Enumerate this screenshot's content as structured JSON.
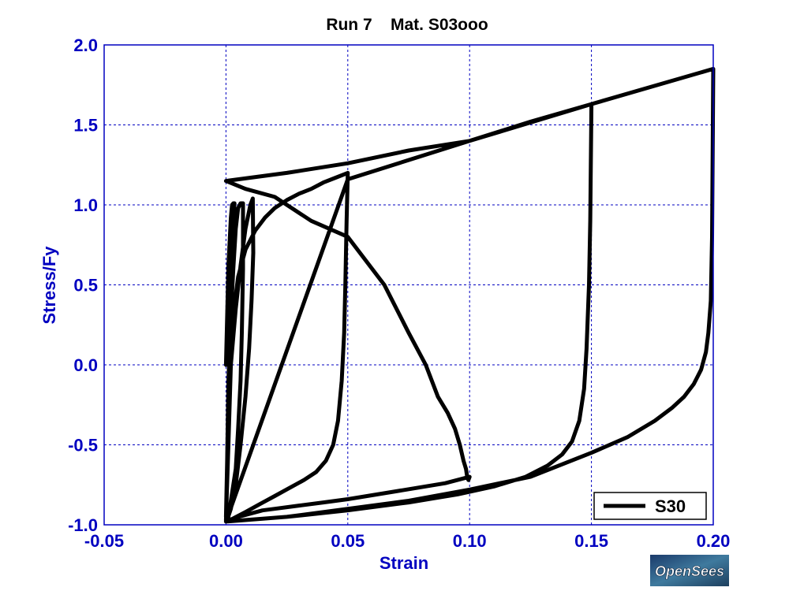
{
  "colors": {
    "axis": "#0000c0",
    "grid": "#0000c0",
    "series": "#000000",
    "background": "#ffffff"
  },
  "chart_data": {
    "type": "line",
    "title": "Run 7    Mat. S03ooo",
    "xlabel": "Strain",
    "ylabel": "Stress/Fy",
    "xlim": [
      -0.05,
      0.2
    ],
    "ylim": [
      -1.0,
      2.0
    ],
    "xticks": [
      -0.05,
      0.0,
      0.05,
      0.1,
      0.15,
      0.2
    ],
    "xtick_labels": [
      "-0.05",
      "0.00",
      "0.05",
      "0.10",
      "0.15",
      "0.20"
    ],
    "yticks": [
      -1.0,
      -0.5,
      0.0,
      0.5,
      1.0,
      1.5,
      2.0
    ],
    "ytick_labels": [
      "-1.0",
      "-0.5",
      "0.0",
      "0.5",
      "1.0",
      "1.5",
      "2.0"
    ],
    "grid": true,
    "legend_position": "bottom-right",
    "series": [
      {
        "name": "S30",
        "x": [
          0.0,
          0.0005,
          0.001,
          0.002,
          0.0025,
          0.003,
          0.0035,
          0.002,
          0.0015,
          0.001,
          0.0005,
          0.0,
          0.0,
          0.0005,
          0.001,
          0.002,
          0.003,
          0.004,
          0.005,
          0.006,
          0.007,
          0.007,
          0.0065,
          0.006,
          0.005,
          0.004,
          0.002,
          0.001,
          0.0,
          0.0,
          0.001,
          0.002,
          0.004,
          0.006,
          0.008,
          0.01,
          0.011,
          0.0112,
          0.0105,
          0.0095,
          0.008,
          0.006,
          0.004,
          0.002,
          0.0005,
          0.0,
          0.0,
          0.002,
          0.005,
          0.008,
          0.012,
          0.016,
          0.02,
          0.025,
          0.03,
          0.035,
          0.04,
          0.045,
          0.05,
          0.0495,
          0.049,
          0.0485,
          0.0475,
          0.046,
          0.044,
          0.041,
          0.037,
          0.032,
          0.026,
          0.02,
          0.014,
          0.008,
          0.003,
          0.0,
          0.005,
          0.01,
          0.015,
          0.02,
          0.03,
          0.04,
          0.05,
          0.07,
          0.09,
          0.1,
          0.0995,
          0.099,
          0.0985,
          0.0975,
          0.096,
          0.094,
          0.091,
          0.087,
          0.082,
          0.075,
          0.065,
          0.05,
          0.035,
          0.02,
          0.008,
          0.0,
          0.025,
          0.05,
          0.075,
          0.1,
          0.125,
          0.15,
          0.1495,
          0.149,
          0.148,
          0.147,
          0.145,
          0.142,
          0.138,
          0.132,
          0.123,
          0.11,
          0.095,
          0.075,
          0.05,
          0.025,
          0.0,
          0.05,
          0.1,
          0.15,
          0.2,
          0.1995,
          0.199,
          0.198,
          0.197,
          0.195,
          0.192,
          0.188,
          0.183,
          0.176,
          0.165,
          0.15,
          0.125,
          0.1,
          0.075,
          0.05,
          0.025,
          0.0
        ],
        "y": [
          0.0,
          0.3,
          0.62,
          0.92,
          1.0,
          1.01,
          1.01,
          0.6,
          0.2,
          -0.2,
          -0.6,
          -0.95,
          -0.95,
          -0.6,
          -0.1,
          0.3,
          0.6,
          0.85,
          0.98,
          1.01,
          1.01,
          0.6,
          0.2,
          -0.1,
          -0.4,
          -0.65,
          -0.85,
          -0.95,
          -0.97,
          -0.97,
          -0.5,
          0.0,
          0.35,
          0.62,
          0.85,
          1.0,
          1.04,
          0.7,
          0.4,
          0.1,
          -0.2,
          -0.5,
          -0.75,
          -0.9,
          -0.97,
          -0.98,
          -0.98,
          0.2,
          0.55,
          0.72,
          0.84,
          0.92,
          0.98,
          1.03,
          1.07,
          1.1,
          1.14,
          1.17,
          1.2,
          0.9,
          0.5,
          0.2,
          -0.1,
          -0.35,
          -0.5,
          -0.6,
          -0.67,
          -0.72,
          -0.77,
          -0.82,
          -0.87,
          -0.92,
          -0.96,
          -0.98,
          -0.95,
          -0.93,
          -0.91,
          -0.9,
          -0.88,
          -0.86,
          -0.84,
          -0.79,
          -0.74,
          -0.7,
          -0.72,
          -0.7,
          -0.65,
          -0.6,
          -0.5,
          -0.4,
          -0.3,
          -0.2,
          0.0,
          0.2,
          0.5,
          0.8,
          0.9,
          1.05,
          1.1,
          1.15,
          1.2,
          1.26,
          1.34,
          1.4,
          1.52,
          1.63,
          0.9,
          0.5,
          0.1,
          -0.15,
          -0.35,
          -0.48,
          -0.56,
          -0.63,
          -0.7,
          -0.76,
          -0.81,
          -0.86,
          -0.91,
          -0.95,
          -0.98,
          1.16,
          1.4,
          1.63,
          1.85,
          0.8,
          0.4,
          0.2,
          0.08,
          -0.03,
          -0.12,
          -0.2,
          -0.27,
          -0.35,
          -0.45,
          -0.55,
          -0.7,
          -0.78,
          -0.85,
          -0.9,
          -0.95,
          -0.98
        ]
      }
    ]
  },
  "legend": {
    "label": "S30"
  },
  "logo": {
    "name": "opensees-logo",
    "text": "OpenSees"
  }
}
